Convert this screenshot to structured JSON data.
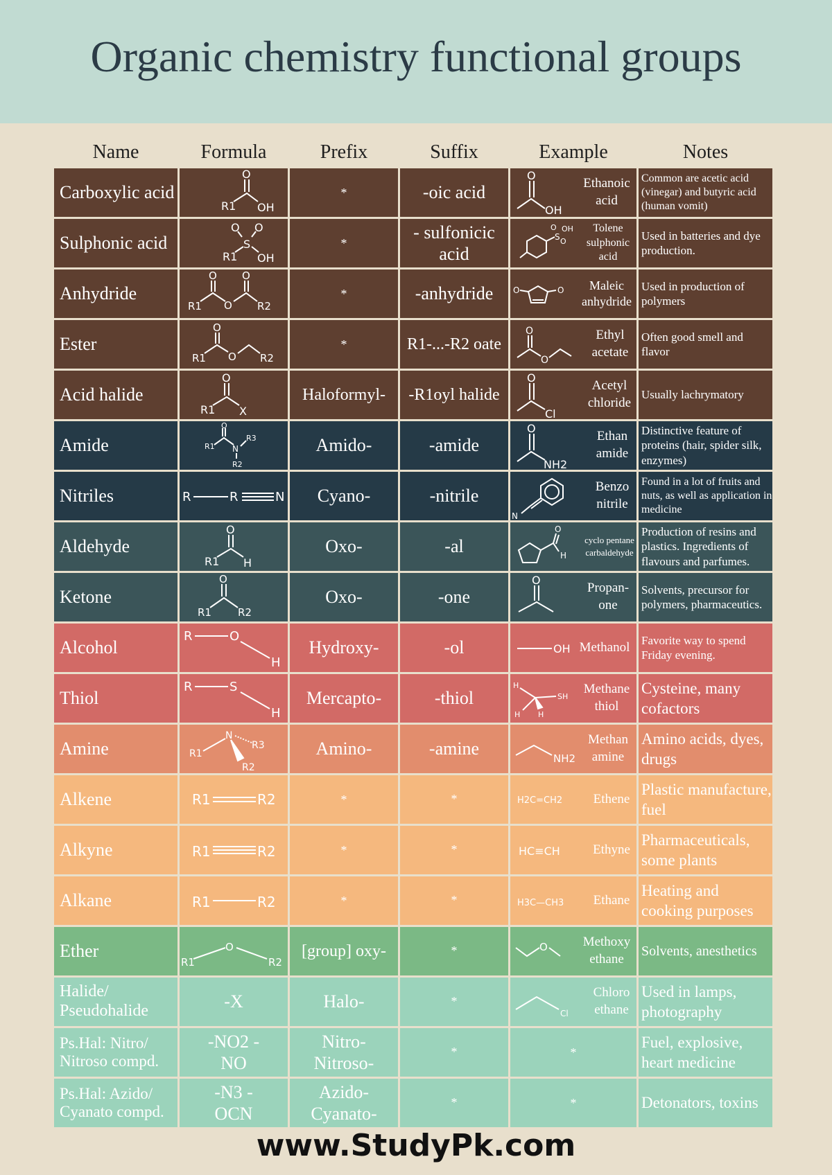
{
  "title": "Organic chemistry functional groups",
  "columns": [
    "Name",
    "Formula",
    "Prefix",
    "Suffix",
    "Example",
    "Notes"
  ],
  "colors": {
    "brown": "#5e3f30",
    "navy": "#253a47",
    "slate": "#3b5559",
    "red": "#d26a66",
    "salmon": "#e28d6d",
    "orange": "#f5b87e",
    "green": "#7bb985",
    "mint": "#9bd3bb"
  },
  "rows": [
    {
      "name": "Carboxylic acid",
      "prefix": "*",
      "suffix": "-oic acid",
      "example": "Ethanoic acid",
      "notes": "Common are acetic acid (vinegar) and butyric acid (human vomit)",
      "color": "brown"
    },
    {
      "name": "Sulphonic acid",
      "prefix": "*",
      "suffix": "- sulfonicic acid",
      "example": "Tolene sulphonic acid",
      "notes": "Used in batteries and dye production.",
      "color": "brown"
    },
    {
      "name": "Anhydride",
      "prefix": "*",
      "suffix": "-anhydride",
      "example": "Maleic anhydride",
      "notes": "Used in production of polymers",
      "color": "brown"
    },
    {
      "name": "Ester",
      "prefix": "*",
      "suffix": "R1-...-R2 oate",
      "example": "Ethyl acetate",
      "notes": "Often good smell and flavor",
      "color": "brown"
    },
    {
      "name": "Acid halide",
      "prefix": "Haloformyl-",
      "suffix": "-R1oyl halide",
      "example": "Acetyl chloride",
      "notes": "Usually lachrymatory",
      "color": "brown"
    },
    {
      "name": "Amide",
      "prefix": "Amido-",
      "suffix": "-amide",
      "example": "Ethan amide",
      "notes": "Distinctive feature of proteins (hair, spider silk, enzymes)",
      "color": "navy"
    },
    {
      "name": "Nitriles",
      "prefix": "Cyano-",
      "suffix": "-nitrile",
      "example": "Benzo nitrile",
      "notes": "Found in a lot of fruits and nuts, as well as application in medicine",
      "color": "navy"
    },
    {
      "name": "Aldehyde",
      "prefix": "Oxo-",
      "suffix": "-al",
      "example": "cyclo pentane carbaldehyde",
      "notes": "Production of resins and plastics. Ingredients of flavours and parfumes.",
      "color": "slate"
    },
    {
      "name": "Ketone",
      "prefix": "Oxo-",
      "suffix": "-one",
      "example": "Propan-one",
      "notes": "Solvents, precursor for polymers, pharmaceutics.",
      "color": "slate"
    },
    {
      "name": "Alcohol",
      "prefix": "Hydroxy-",
      "suffix": "-ol",
      "example": "Methanol",
      "notes": "Favorite way to spend Friday evening.",
      "color": "red"
    },
    {
      "name": "Thiol",
      "prefix": "Mercapto-",
      "suffix": "-thiol",
      "example": "Methane thiol",
      "notes": "Cysteine, many cofactors",
      "color": "red"
    },
    {
      "name": "Amine",
      "prefix": "Amino-",
      "suffix": "-amine",
      "example": "Methan amine",
      "notes": "Amino acids, dyes, drugs",
      "color": "salmon"
    },
    {
      "name": "Alkene",
      "prefix": "*",
      "suffix": "*",
      "example": "Ethene",
      "notes": "Plastic manufacture, fuel",
      "color": "orange"
    },
    {
      "name": "Alkyne",
      "prefix": "*",
      "suffix": "*",
      "example": "Ethyne",
      "notes": "Pharmaceuticals, some plants",
      "color": "orange"
    },
    {
      "name": "Alkane",
      "prefix": "*",
      "suffix": "*",
      "example": "Ethane",
      "notes": "Heating and cooking purposes",
      "color": "orange"
    },
    {
      "name": "Ether",
      "prefix": "[group] oxy-",
      "suffix": "*",
      "example": "Methoxy ethane",
      "notes": "Solvents, anesthetics",
      "color": "green"
    },
    {
      "name": "Halide/ Pseudohalide",
      "formula": "-X",
      "prefix": "Halo-",
      "suffix": "*",
      "example": "Chloro ethane",
      "notes": "Used in lamps, photography",
      "color": "mint"
    },
    {
      "name": "Ps.Hal: Nitro/ Nitroso compd.",
      "formula": "-NO2 -NO",
      "prefix": "Nitro- Nitroso-",
      "suffix": "*",
      "example": "*",
      "notes": "Fuel, explosive, heart medicine",
      "color": "mint"
    },
    {
      "name": "Ps.Hal: Azido/ Cyanato compd.",
      "formula": "-N3 -OCN",
      "prefix": "Azido- Cyanato-",
      "suffix": "*",
      "example": "*",
      "notes": "Detonators, toxins",
      "color": "mint"
    }
  ],
  "structure_labels": {
    "O": "O",
    "OH": "OH",
    "H": "H",
    "N": "N",
    "S": "S",
    "Cl": "Cl",
    "X": "X",
    "R": "R",
    "R1": "R1",
    "R2": "R2",
    "R3": "R3",
    "NH2": "NH2",
    "SH": "SH",
    "H2C=CH2": "H2C=CH2",
    "HC≡CH": "HC≡CH",
    "H3C—CH3": "H3C—CH3"
  },
  "footer": "www.StudyPk.com"
}
